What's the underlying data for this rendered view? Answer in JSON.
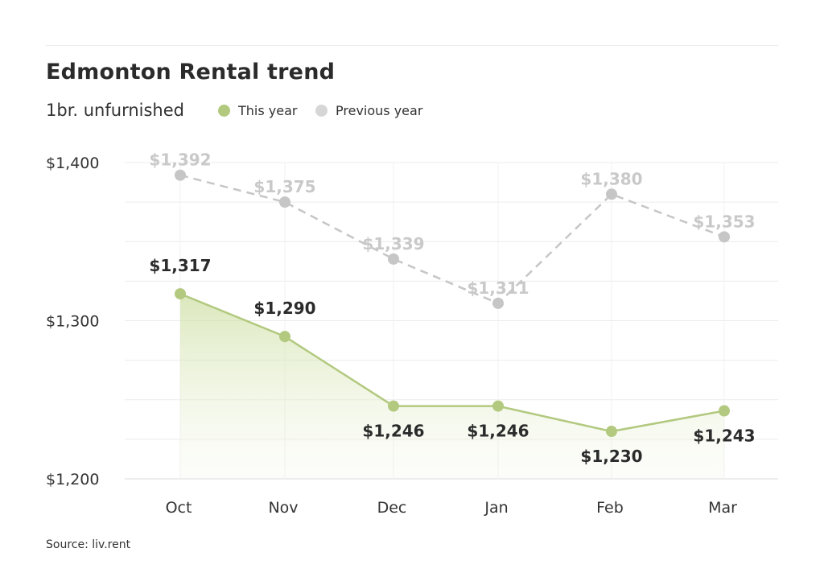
{
  "chart_data": {
    "type": "line",
    "title": "Edmonton Rental trend",
    "subtitle": "1br. unfurnished",
    "categories": [
      "Oct",
      "Nov",
      "Dec",
      "Jan",
      "Feb",
      "Mar"
    ],
    "ylim": [
      1200,
      1400
    ],
    "yticks": [
      1200,
      1300,
      1400
    ],
    "ytick_labels": [
      "$1,200",
      "$1,300",
      "$1,400"
    ],
    "legend_position": "top, next to subtitle",
    "series": [
      {
        "name": "This year",
        "color": "#b2c97f",
        "style": "solid line with filled area",
        "values": [
          1317,
          1290,
          1246,
          1246,
          1230,
          1243
        ],
        "labels": [
          "$1,317",
          "$1,290",
          "$1,246",
          "$1,246",
          "$1,230",
          "$1,243"
        ]
      },
      {
        "name": "Previous year",
        "color": "#c6c6c6",
        "style": "dashed line",
        "values": [
          1392,
          1375,
          1339,
          1311,
          1380,
          1353
        ],
        "labels": [
          "$1,392",
          "$1,375",
          "$1,339",
          "$1,311",
          "$1,380",
          "$1,353"
        ]
      }
    ],
    "grid": true
  },
  "source": "Source: liv.rent"
}
